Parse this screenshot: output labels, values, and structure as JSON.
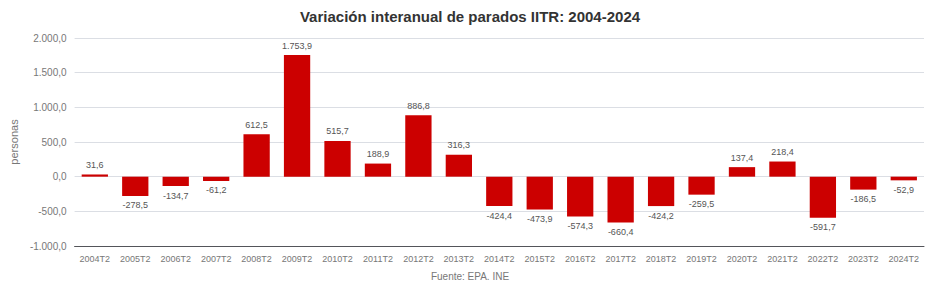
{
  "chart_data": {
    "type": "bar",
    "title": "Variación interanual de parados IITR: 2004-2024",
    "ylabel": "personas",
    "annotations": [
      "Fuente: EPA. INE"
    ],
    "categories": [
      "2004T2",
      "2005T2",
      "2006T2",
      "2007T2",
      "2008T2",
      "2009T2",
      "2010T2",
      "2011T2",
      "2012T2",
      "2013T2",
      "2014T2",
      "2015T2",
      "2016T2",
      "2017T2",
      "2018T2",
      "2019T2",
      "2020T2",
      "2021T2",
      "2022T2",
      "2023T2",
      "2024T2"
    ],
    "values": [
      31.6,
      -278.5,
      -134.7,
      -61.2,
      612.5,
      1753.9,
      515.7,
      188.9,
      886.8,
      316.3,
      -424.4,
      -473.9,
      -574.3,
      -660.4,
      -424.2,
      -259.5,
      137.4,
      218.4,
      -591.7,
      -186.5,
      -52.9
    ],
    "value_labels": [
      "31,6",
      "-278,5",
      "-134,7",
      "-61,2",
      "612,5",
      "1.753,9",
      "515,7",
      "188,9",
      "886,8",
      "316,3",
      "-424,4",
      "-473,9",
      "-574,3",
      "-660,4",
      "-424,2",
      "-259,5",
      "137,4",
      "218,4",
      "-591,7",
      "-186,5",
      "-52,9"
    ],
    "data_labels": true,
    "color": "#cc0000",
    "ylim": [
      -1000,
      2000
    ],
    "yticks": [
      {
        "value": -1000,
        "label": "-1.000,0"
      },
      {
        "value": -500,
        "label": "-500,0"
      },
      {
        "value": 0,
        "label": "0,0"
      },
      {
        "value": 500,
        "label": "500,0"
      },
      {
        "value": 1000,
        "label": "1.000,0"
      },
      {
        "value": 1500,
        "label": "1.500,0"
      },
      {
        "value": 2000,
        "label": "2.000,0"
      }
    ],
    "grid": true
  }
}
